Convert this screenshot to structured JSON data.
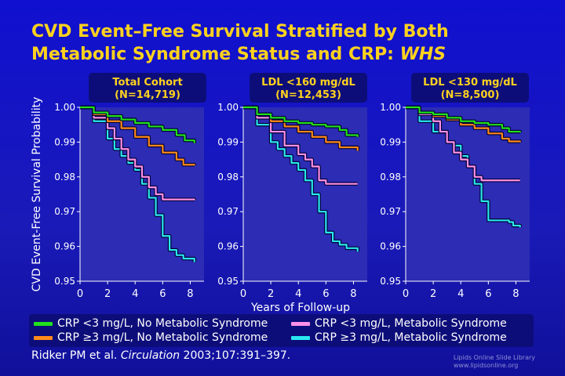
{
  "title": {
    "line1": "CVD Event–Free Survival Stratified by Both",
    "line2": "Metabolic Syndrome Status and CRP: ",
    "line2_em": "WHS"
  },
  "colors": {
    "green": "#22e01c",
    "orange": "#ff8a1a",
    "pink": "#ff90e8",
    "cyan": "#2ae8f0",
    "panel_fill": "#2c2cb4",
    "header_fill": "#0d0d7a",
    "title_color": "#ffd21e"
  },
  "legend": [
    {
      "label": "CRP <3 mg/L, No Metabolic Syndrome",
      "color": "#22e01c"
    },
    {
      "label": "CRP ≥3 mg/L, No Metabolic Syndrome",
      "color": "#ff8a1a"
    },
    {
      "label": "CRP <3 mg/L, Metabolic Syndrome",
      "color": "#ff90e8"
    },
    {
      "label": "CRP ≥3 mg/L, Metabolic Syndrome",
      "color": "#2ae8f0"
    }
  ],
  "citation": {
    "authors": "Ridker PM et al. ",
    "journal": "Circulation",
    "ref": " 2003;107:391–397."
  },
  "footer": {
    "line1": "Lipids Online Slide Library",
    "line2": "www.lipidsonline.org"
  },
  "chart_data": {
    "type": "line",
    "ylabel": "CVD Event-Free Survival Probability",
    "xlabel": "Years of Follow-up",
    "xlim": [
      0,
      9
    ],
    "ylim": [
      0.95,
      1.0
    ],
    "xticks": [
      0,
      2,
      4,
      6,
      8
    ],
    "yticks": [
      0.95,
      0.96,
      0.97,
      0.98,
      0.99,
      1.0
    ],
    "ytick_labels": [
      "0.95",
      "0.96",
      "0.97",
      "0.98",
      "0.99",
      "1.00"
    ],
    "grid": false,
    "legend_position": "bottom",
    "panels": [
      {
        "header1": "Total Cohort",
        "header2": "(N=14,719)",
        "series": [
          {
            "color": "#22e01c",
            "x": [
              0,
              1,
              2,
              3,
              4,
              5,
              6,
              7,
              7.6,
              8.3
            ],
            "y": [
              1.0,
              0.9985,
              0.9975,
              0.9965,
              0.9955,
              0.9945,
              0.9935,
              0.992,
              0.9905,
              0.9897
            ]
          },
          {
            "color": "#ff8a1a",
            "x": [
              0,
              1,
              2,
              3,
              4,
              5,
              6,
              7,
              7.5,
              8.3
            ],
            "y": [
              1.0,
              0.998,
              0.996,
              0.994,
              0.9915,
              0.989,
              0.987,
              0.985,
              0.9835,
              0.9833
            ]
          },
          {
            "color": "#ff90e8",
            "x": [
              0,
              1,
              2,
              2.5,
              3,
              3.5,
              4,
              4.5,
              5,
              5.5,
              6,
              7,
              8.3
            ],
            "y": [
              1.0,
              0.997,
              0.994,
              0.991,
              0.988,
              0.985,
              0.983,
              0.98,
              0.977,
              0.975,
              0.9735,
              0.9735,
              0.9733
            ]
          },
          {
            "color": "#2ae8f0",
            "x": [
              0,
              1,
              2,
              2.5,
              3,
              3.5,
              4,
              4.5,
              5,
              5.5,
              6,
              6.5,
              7,
              7.5,
              8.3
            ],
            "y": [
              1.0,
              0.996,
              0.991,
              0.988,
              0.986,
              0.984,
              0.982,
              0.978,
              0.974,
              0.969,
              0.963,
              0.959,
              0.9575,
              0.9565,
              0.9555
            ]
          }
        ]
      },
      {
        "header1": "LDL <160 mg/dL",
        "header2": "(N=12,453)",
        "series": [
          {
            "color": "#22e01c",
            "x": [
              0,
              1,
              2,
              3,
              4,
              5,
              6,
              7,
              7.5,
              8.3
            ],
            "y": [
              1.0,
              0.998,
              0.997,
              0.996,
              0.9955,
              0.995,
              0.9945,
              0.9935,
              0.992,
              0.9915
            ]
          },
          {
            "color": "#ff8a1a",
            "x": [
              0,
              1,
              2,
              3,
              4,
              5,
              6,
              7,
              8.3
            ],
            "y": [
              1.0,
              0.998,
              0.996,
              0.9945,
              0.993,
              0.9915,
              0.99,
              0.9885,
              0.9875
            ]
          },
          {
            "color": "#ff90e8",
            "x": [
              0,
              1,
              2,
              3,
              4,
              4.5,
              5,
              5.5,
              6,
              7,
              8.3
            ],
            "y": [
              1.0,
              0.997,
              0.993,
              0.989,
              0.9865,
              0.985,
              0.983,
              0.979,
              0.978,
              0.978,
              0.978
            ]
          },
          {
            "color": "#2ae8f0",
            "x": [
              0,
              1,
              2,
              2.5,
              3,
              3.5,
              4,
              4.5,
              5,
              5.5,
              6,
              6.5,
              7,
              7.5,
              8.3
            ],
            "y": [
              1.0,
              0.995,
              0.99,
              0.988,
              0.986,
              0.984,
              0.982,
              0.979,
              0.975,
              0.97,
              0.964,
              0.9615,
              0.9605,
              0.9595,
              0.9585
            ]
          }
        ]
      },
      {
        "header1": "LDL <130 mg/dL",
        "header2": "(N=8,500)",
        "series": [
          {
            "color": "#22e01c",
            "x": [
              0,
              1,
              2,
              3,
              4,
              5,
              6,
              7,
              7.5,
              8.3
            ],
            "y": [
              1.0,
              0.9985,
              0.998,
              0.997,
              0.996,
              0.9955,
              0.995,
              0.994,
              0.993,
              0.9928
            ]
          },
          {
            "color": "#ff8a1a",
            "x": [
              0,
              1,
              2,
              3,
              4,
              5,
              6,
              7,
              7.5,
              8.3
            ],
            "y": [
              1.0,
              0.9985,
              0.9975,
              0.9965,
              0.995,
              0.994,
              0.9925,
              0.991,
              0.9902,
              0.99
            ]
          },
          {
            "color": "#ff90e8",
            "x": [
              0,
              1,
              2,
              2.5,
              3,
              3.5,
              4,
              4.5,
              5,
              5.5,
              6,
              7,
              8.3
            ],
            "y": [
              1.0,
              0.998,
              0.996,
              0.993,
              0.99,
              0.987,
              0.985,
              0.983,
              0.98,
              0.979,
              0.979,
              0.979,
              0.979
            ]
          },
          {
            "color": "#2ae8f0",
            "x": [
              0,
              1,
              2,
              3,
              3.5,
              4,
              4.5,
              5,
              5.5,
              6,
              7,
              7.5,
              7.8,
              8.3
            ],
            "y": [
              1.0,
              0.996,
              0.993,
              0.99,
              0.989,
              0.986,
              0.983,
              0.978,
              0.973,
              0.9675,
              0.9675,
              0.967,
              0.966,
              0.9655
            ]
          }
        ]
      }
    ]
  }
}
